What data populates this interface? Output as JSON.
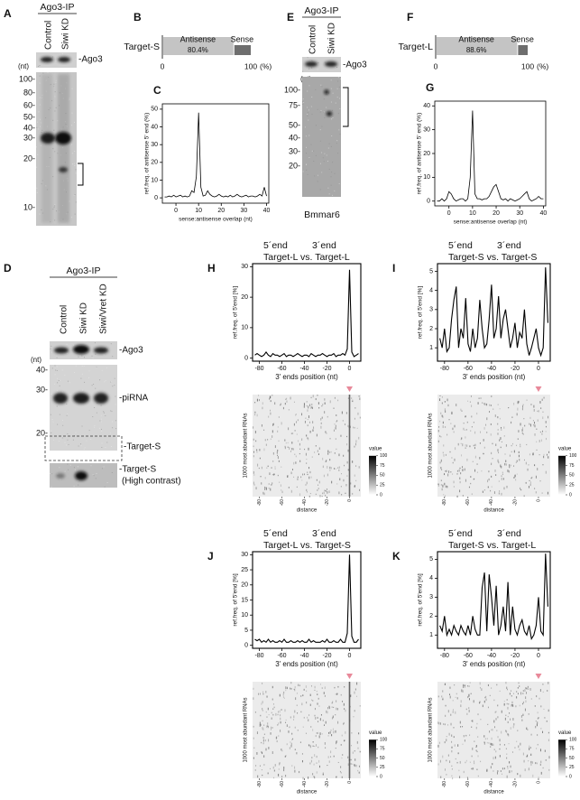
{
  "panels": {
    "A": {
      "label": "A",
      "title": "Ago3-IP",
      "lanes": [
        "Control",
        "Siwi KD"
      ],
      "band_label": "-Ago3",
      "unit": "(nt)",
      "markers": [
        "100-",
        "80-",
        "60-",
        "50-",
        "40-",
        "30-",
        "20-",
        "10-"
      ]
    },
    "B": {
      "label": "B",
      "type": "bar",
      "categories": [
        "Target-S"
      ],
      "series": [
        {
          "name": "Antisense",
          "values": [
            80.4
          ],
          "value_labels": [
            "80.4%"
          ],
          "color": "#c4c4c4"
        },
        {
          "name": "Sense",
          "values": [
            19.6
          ],
          "color": "#6e6e6e"
        }
      ],
      "xlim": [
        0,
        100
      ],
      "xticks": [
        0,
        100
      ],
      "unit": "(%)"
    },
    "C": {
      "label": "C",
      "type": "line",
      "ylabel": "ref.freq. of antisense 5' end (%)",
      "xlabel": "sense:antisense overlap (nt)",
      "xlim": [
        -6,
        41
      ],
      "ylim": [
        -3,
        53
      ],
      "xticks": [
        0,
        10,
        20,
        30,
        40
      ],
      "yticks": [
        0,
        10,
        20,
        30,
        40,
        50
      ],
      "x": [
        -5,
        -4,
        -3,
        -2,
        -1,
        0,
        1,
        2,
        3,
        4,
        5,
        6,
        7,
        8,
        9,
        10,
        11,
        12,
        13,
        14,
        15,
        16,
        17,
        18,
        19,
        20,
        21,
        22,
        23,
        24,
        25,
        26,
        27,
        28,
        29,
        30,
        31,
        32,
        33,
        34,
        35,
        36,
        37,
        38,
        39,
        40
      ],
      "values": [
        0.5,
        0.5,
        1,
        0.5,
        1.5,
        0.5,
        1,
        1.5,
        0.5,
        1,
        0.5,
        1,
        4,
        3,
        12,
        48,
        6,
        1,
        1.5,
        4,
        2,
        1,
        0.5,
        1,
        2,
        1,
        0.5,
        1,
        0.5,
        1.5,
        0.5,
        1,
        2,
        1,
        0.5,
        1,
        1.5,
        0.5,
        1,
        1,
        0.5,
        1,
        2,
        1,
        6,
        1
      ]
    },
    "E": {
      "label": "E",
      "title": "Ago3-IP",
      "lanes": [
        "Control",
        "Siwi KD"
      ],
      "band_label": "-Ago3",
      "unit": "(nt)",
      "markers": [
        "100-",
        "75-",
        "50-",
        "40-",
        "30-",
        "20-"
      ],
      "probe": "Bmmar6"
    },
    "F": {
      "label": "F",
      "type": "bar",
      "categories": [
        "Target-L"
      ],
      "series": [
        {
          "name": "Antisense",
          "values": [
            88.6
          ],
          "value_labels": [
            "88.6%"
          ],
          "color": "#c4c4c4"
        },
        {
          "name": "Sense",
          "values": [
            11.4
          ],
          "color": "#6e6e6e"
        }
      ],
      "xlim": [
        0,
        100
      ],
      "xticks": [
        0,
        100
      ],
      "unit": "(%)"
    },
    "G": {
      "label": "G",
      "type": "line",
      "ylabel": "ref.freq. of antisense 5' end (%)",
      "xlabel": "sense:antisense overlap (nt)",
      "xlim": [
        -6,
        41
      ],
      "ylim": [
        -2,
        42
      ],
      "xticks": [
        0,
        10,
        20,
        30,
        40
      ],
      "yticks": [
        0,
        10,
        20,
        30,
        40
      ],
      "x": [
        -5,
        -4,
        -3,
        -2,
        -1,
        0,
        1,
        2,
        3,
        4,
        5,
        6,
        7,
        8,
        9,
        10,
        11,
        12,
        13,
        14,
        15,
        16,
        17,
        18,
        19,
        20,
        21,
        22,
        23,
        24,
        25,
        26,
        27,
        28,
        29,
        30,
        31,
        32,
        33,
        34,
        35,
        36,
        37,
        38,
        39,
        40
      ],
      "values": [
        0,
        0,
        1,
        0,
        1,
        4,
        3,
        1,
        0,
        0.5,
        1,
        1,
        0,
        1,
        10,
        38,
        3,
        1,
        1,
        0.5,
        1,
        1,
        2,
        4,
        6,
        7,
        4,
        1,
        0.5,
        1,
        0,
        1,
        0.5,
        0,
        0.5,
        1,
        2,
        3,
        4,
        1,
        0,
        0.5,
        1,
        2,
        1,
        1
      ]
    },
    "D": {
      "label": "D",
      "title": "Ago3-IP",
      "lanes": [
        "Control",
        "Siwi KD",
        "Siwi/Vret KD"
      ],
      "band_label": "-Ago3",
      "unit": "(nt)",
      "markers": [
        "40-",
        "30-",
        "20-"
      ],
      "bands": [
        "-piRNA",
        "-Target-S",
        "-Target-S",
        "(High contrast)"
      ]
    },
    "H": {
      "label": "H",
      "type": "line",
      "end5": "5´end",
      "end3": "3´end",
      "comparison": "Target-L vs. Target-L",
      "ylabel": "ref.freq. of 5'end [%]",
      "xlabel": "3' ends position (nt)",
      "xlim": [
        -86,
        10
      ],
      "ylim": [
        -1,
        31
      ],
      "xticks": [
        -80,
        -60,
        -40,
        -20,
        0
      ],
      "yticks": [
        0,
        10,
        20,
        30
      ],
      "x": [
        -84,
        -82,
        -80,
        -78,
        -76,
        -74,
        -72,
        -70,
        -68,
        -66,
        -64,
        -62,
        -60,
        -58,
        -56,
        -54,
        -52,
        -50,
        -48,
        -46,
        -44,
        -42,
        -40,
        -38,
        -36,
        -34,
        -32,
        -30,
        -28,
        -26,
        -24,
        -22,
        -20,
        -18,
        -16,
        -14,
        -12,
        -10,
        -8,
        -6,
        -4,
        -2,
        0,
        2,
        4,
        6,
        8
      ],
      "values": [
        1,
        1.5,
        1,
        0.5,
        1,
        2,
        1,
        0.5,
        1.5,
        1,
        1,
        0.5,
        1,
        1.5,
        0.5,
        1,
        1,
        0.5,
        1,
        1.5,
        1,
        0.5,
        1,
        1,
        0.5,
        1.5,
        1,
        0.5,
        1,
        1,
        1.5,
        1,
        0.5,
        1,
        1,
        1.5,
        0.5,
        1,
        1,
        1.5,
        1,
        3,
        29,
        2,
        0.5,
        1,
        1.5
      ],
      "heatmap": {
        "ylabel": "1000 most abundant RNAs",
        "xlabel": "distance",
        "xticks": [
          -80,
          -60,
          -40,
          -20,
          0
        ],
        "legend_title": "value",
        "legend_lim": [
          0,
          100
        ],
        "legend_ticks": [
          0,
          25,
          50,
          75,
          100
        ]
      }
    },
    "I": {
      "label": "I",
      "type": "line",
      "end5": "5´end",
      "end3": "3´end",
      "comparison": "Target-S vs. Target-S",
      "ylabel": "ref.freq. of 5'end [%]",
      "xlabel": "3' ends position (nt)",
      "xlim": [
        -86,
        10
      ],
      "ylim": [
        0.3,
        5.4
      ],
      "xticks": [
        -80,
        -60,
        -40,
        -20,
        0
      ],
      "yticks": [
        1,
        2,
        3,
        4,
        5
      ],
      "x": [
        -84,
        -82,
        -80,
        -78,
        -76,
        -74,
        -72,
        -70,
        -68,
        -66,
        -64,
        -62,
        -60,
        -58,
        -56,
        -54,
        -52,
        -50,
        -48,
        -46,
        -44,
        -42,
        -40,
        -38,
        -36,
        -34,
        -32,
        -30,
        -28,
        -26,
        -24,
        -22,
        -20,
        -18,
        -16,
        -14,
        -12,
        -10,
        -8,
        -6,
        -4,
        -2,
        0,
        2,
        4,
        6,
        8
      ],
      "values": [
        1.5,
        1,
        2,
        0.8,
        1,
        2.5,
        3.5,
        4.2,
        1,
        2,
        1.5,
        3.6,
        1.2,
        0.8,
        2,
        1,
        1.5,
        3.5,
        2,
        1,
        1.2,
        2.5,
        4.3,
        1.5,
        2,
        3.7,
        1.5,
        2.5,
        3,
        2,
        1,
        1.5,
        2.3,
        1,
        1.8,
        1.5,
        3,
        1.2,
        0.6,
        1,
        1.5,
        2,
        1,
        0.6,
        1,
        5.2,
        2.3
      ],
      "heatmap": {
        "ylabel": "1000 most abundant RNAs",
        "xlabel": "distance",
        "xticks": [
          -80,
          -60,
          -40,
          -20,
          0
        ],
        "legend_title": "value",
        "legend_lim": [
          0,
          100
        ],
        "legend_ticks": [
          0,
          25,
          50,
          75,
          100
        ]
      }
    },
    "J": {
      "label": "J",
      "type": "line",
      "end5": "5´end",
      "end3": "3´end",
      "comparison": "Target-L vs. Target-S",
      "ylabel": "ref.freq. of 5'end [%]",
      "xlabel": "3' ends position (nt)",
      "xlim": [
        -86,
        10
      ],
      "ylim": [
        -1,
        31
      ],
      "xticks": [
        -80,
        -60,
        -40,
        -20,
        0
      ],
      "yticks": [
        0,
        5,
        10,
        15,
        20,
        25,
        30
      ],
      "x": [
        -84,
        -82,
        -80,
        -78,
        -76,
        -74,
        -72,
        -70,
        -68,
        -66,
        -64,
        -62,
        -60,
        -58,
        -56,
        -54,
        -52,
        -50,
        -48,
        -46,
        -44,
        -42,
        -40,
        -38,
        -36,
        -34,
        -32,
        -30,
        -28,
        -26,
        -24,
        -22,
        -20,
        -18,
        -16,
        -14,
        -12,
        -10,
        -8,
        -6,
        -4,
        -2,
        0,
        2,
        4,
        6,
        8
      ],
      "values": [
        2,
        1.5,
        2,
        1,
        1.5,
        1,
        2,
        1,
        1.5,
        1,
        1,
        1.5,
        1,
        2,
        1,
        1,
        1.5,
        1,
        1,
        1.5,
        1,
        1.5,
        1,
        1,
        2,
        1,
        1.5,
        1,
        1,
        1,
        1.5,
        1,
        2,
        1,
        1,
        1.5,
        1,
        1,
        2,
        1,
        1,
        4,
        30,
        3,
        1,
        1,
        2
      ],
      "heatmap": {
        "ylabel": "1000 most abundant RNAs",
        "xlabel": "distance",
        "xticks": [
          -80,
          -60,
          -40,
          -20,
          0
        ],
        "legend_title": "value",
        "legend_lim": [
          0,
          100
        ],
        "legend_ticks": [
          0,
          25,
          50,
          75,
          100
        ]
      }
    },
    "K": {
      "label": "K",
      "type": "line",
      "end5": "5´end",
      "end3": "3´end",
      "comparison": "Target-S vs. Target-L",
      "ylabel": "ref.freq. of 5'end [%]",
      "xlabel": "3' ends position (nt)",
      "xlim": [
        -86,
        10
      ],
      "ylim": [
        0.3,
        5.4
      ],
      "xticks": [
        -80,
        -60,
        -40,
        -20,
        0
      ],
      "yticks": [
        1,
        2,
        3,
        4,
        5
      ],
      "x": [
        -84,
        -82,
        -80,
        -78,
        -76,
        -74,
        -72,
        -70,
        -68,
        -66,
        -64,
        -62,
        -60,
        -58,
        -56,
        -54,
        -52,
        -50,
        -48,
        -46,
        -44,
        -42,
        -40,
        -38,
        -36,
        -34,
        -32,
        -30,
        -28,
        -26,
        -24,
        -22,
        -20,
        -18,
        -16,
        -14,
        -12,
        -10,
        -8,
        -6,
        -4,
        -2,
        0,
        2,
        4,
        6,
        8
      ],
      "values": [
        1.5,
        1.2,
        2,
        1,
        1.3,
        1,
        1.5,
        1.2,
        1,
        1.5,
        1.2,
        1,
        1.5,
        1,
        2,
        1.3,
        1,
        1,
        3.5,
        4.3,
        1.2,
        4.2,
        3,
        1.5,
        3.6,
        1,
        1.5,
        2.5,
        1.2,
        3.8,
        1,
        2.5,
        1.3,
        1,
        1.5,
        1.8,
        1.2,
        1,
        1.5,
        0.8,
        1,
        1.5,
        3,
        1.2,
        1,
        5.3,
        2.5
      ],
      "heatmap": {
        "ylabel": "1000 most abundant RNAs",
        "xlabel": "distance",
        "xticks": [
          -80,
          -60,
          -40,
          -20,
          0
        ],
        "legend_title": "value",
        "legend_lim": [
          0,
          100
        ],
        "legend_ticks": [
          0,
          25,
          50,
          75,
          100
        ]
      }
    }
  }
}
